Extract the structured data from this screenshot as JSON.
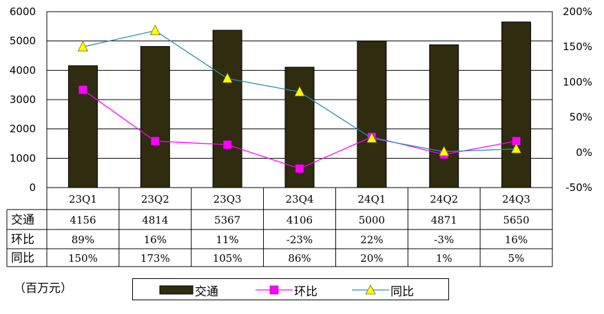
{
  "chart_data": {
    "type": "bar",
    "categories": [
      "23Q1",
      "23Q2",
      "23Q3",
      "23Q4",
      "24Q1",
      "24Q2",
      "24Q3"
    ],
    "series": [
      {
        "name": "交通",
        "type": "bar",
        "axis": "left",
        "color": "#2f2c0f",
        "values": [
          4156,
          4814,
          5367,
          4106,
          5000,
          4871,
          5650
        ]
      },
      {
        "name": "环比",
        "type": "line",
        "axis": "right",
        "marker": "square",
        "color": "#ff00ff",
        "values": [
          89,
          16,
          11,
          -23,
          22,
          -3,
          16
        ]
      },
      {
        "name": "同比",
        "type": "line",
        "axis": "right",
        "marker": "triangle",
        "color": "#2a8fae",
        "values": [
          150,
          173,
          105,
          86,
          20,
          1,
          5
        ]
      }
    ],
    "left_axis": {
      "ylim": [
        0,
        6000
      ],
      "ticks": [
        "0",
        "1000",
        "2000",
        "3000",
        "4000",
        "5000",
        "6000"
      ]
    },
    "right_axis": {
      "ylim": [
        -50,
        200
      ],
      "ticks": [
        "-50%",
        "0%",
        "50%",
        "100%",
        "150%",
        "200%"
      ]
    },
    "table": {
      "rows": [
        {
          "label": "交通",
          "cells": [
            "4156",
            "4814",
            "5367",
            "4106",
            "5000",
            "4871",
            "5650"
          ]
        },
        {
          "label": "环比",
          "cells": [
            "89%",
            "16%",
            "11%",
            "-23%",
            "22%",
            "-3%",
            "16%"
          ]
        },
        {
          "label": "同比",
          "cells": [
            "150%",
            "173%",
            "105%",
            "86%",
            "20%",
            "1%",
            "5%"
          ]
        }
      ]
    },
    "unit_label": "（百万元）",
    "legend": {
      "position": "bottom",
      "items": [
        "交通",
        "环比",
        "同比"
      ]
    },
    "grid": true
  }
}
